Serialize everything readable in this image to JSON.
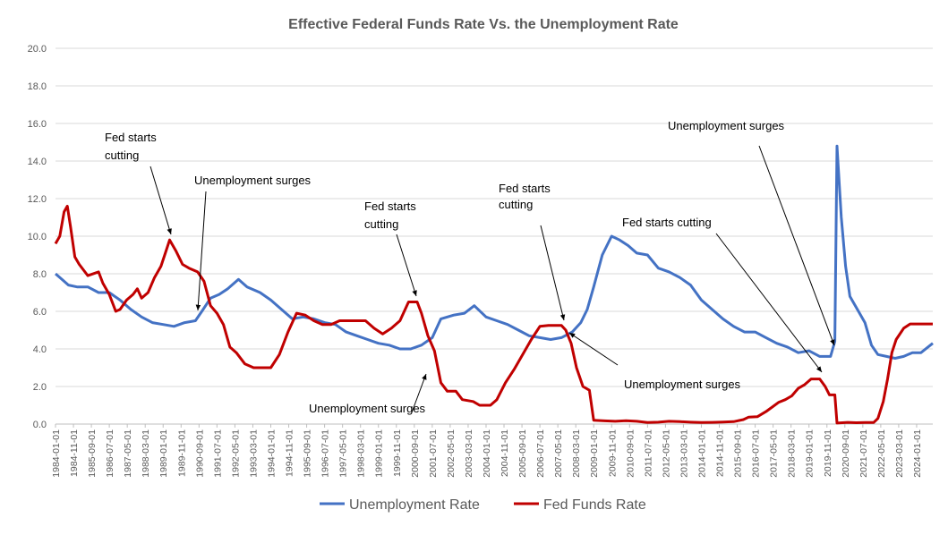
{
  "chart_data": {
    "type": "line",
    "title": "Effective Federal Funds Rate Vs. the Unemployment Rate",
    "xlabel": "",
    "ylabel": "",
    "ylim": [
      0,
      20
    ],
    "yticks": [
      "0.0",
      "2.0",
      "4.0",
      "6.0",
      "8.0",
      "10.0",
      "12.0",
      "14.0",
      "16.0",
      "18.0",
      "20.0"
    ],
    "grid": true,
    "legend_position": "bottom",
    "xticks": [
      "1984-01-01",
      "1984-11-01",
      "1985-09-01",
      "1986-07-01",
      "1987-05-01",
      "1988-03-01",
      "1989-01-01",
      "1989-11-01",
      "1990-09-01",
      "1991-07-01",
      "1992-05-01",
      "1993-03-01",
      "1994-01-01",
      "1994-11-01",
      "1995-09-01",
      "1996-07-01",
      "1997-05-01",
      "1998-03-01",
      "1999-01-01",
      "1999-11-01",
      "2000-09-01",
      "2001-07-01",
      "2002-05-01",
      "2003-03-01",
      "2004-01-01",
      "2004-11-01",
      "2005-09-01",
      "2006-07-01",
      "2007-05-01",
      "2008-03-01",
      "2009-01-01",
      "2009-11-01",
      "2010-09-01",
      "2011-07-01",
      "2012-05-01",
      "2013-03-01",
      "2014-01-01",
      "2014-11-01",
      "2015-09-01",
      "2016-07-01",
      "2017-05-01",
      "2018-03-01",
      "2019-01-01",
      "2019-11-01",
      "2020-09-01",
      "2021-07-01",
      "2022-05-01",
      "2023-03-01",
      "2024-01-01"
    ],
    "x_start": 1984.0,
    "x_end": 2024.75,
    "series": [
      {
        "name": "Unemployment Rate",
        "color": "#4472c4",
        "points": [
          [
            1984.0,
            8.0
          ],
          [
            1984.3,
            7.7
          ],
          [
            1984.6,
            7.4
          ],
          [
            1985.0,
            7.3
          ],
          [
            1985.5,
            7.3
          ],
          [
            1986.0,
            7.0
          ],
          [
            1986.5,
            7.0
          ],
          [
            1987.0,
            6.6
          ],
          [
            1987.5,
            6.1
          ],
          [
            1988.0,
            5.7
          ],
          [
            1988.5,
            5.4
          ],
          [
            1989.0,
            5.3
          ],
          [
            1989.5,
            5.2
          ],
          [
            1990.0,
            5.4
          ],
          [
            1990.5,
            5.5
          ],
          [
            1990.8,
            6.0
          ],
          [
            1991.2,
            6.7
          ],
          [
            1991.6,
            6.9
          ],
          [
            1992.0,
            7.2
          ],
          [
            1992.5,
            7.7
          ],
          [
            1992.9,
            7.3
          ],
          [
            1993.5,
            7.0
          ],
          [
            1994.0,
            6.6
          ],
          [
            1994.5,
            6.1
          ],
          [
            1995.0,
            5.6
          ],
          [
            1995.5,
            5.7
          ],
          [
            1996.0,
            5.6
          ],
          [
            1996.5,
            5.4
          ],
          [
            1997.0,
            5.3
          ],
          [
            1997.5,
            4.9
          ],
          [
            1998.0,
            4.7
          ],
          [
            1998.5,
            4.5
          ],
          [
            1999.0,
            4.3
          ],
          [
            1999.5,
            4.2
          ],
          [
            2000.0,
            4.0
          ],
          [
            2000.5,
            4.0
          ],
          [
            2001.0,
            4.2
          ],
          [
            2001.5,
            4.6
          ],
          [
            2001.9,
            5.6
          ],
          [
            2002.5,
            5.8
          ],
          [
            2003.0,
            5.9
          ],
          [
            2003.45,
            6.3
          ],
          [
            2004.0,
            5.7
          ],
          [
            2004.5,
            5.5
          ],
          [
            2005.0,
            5.3
          ],
          [
            2005.5,
            5.0
          ],
          [
            2006.0,
            4.7
          ],
          [
            2006.5,
            4.6
          ],
          [
            2007.0,
            4.5
          ],
          [
            2007.5,
            4.6
          ],
          [
            2008.0,
            4.9
          ],
          [
            2008.4,
            5.4
          ],
          [
            2008.7,
            6.1
          ],
          [
            2009.0,
            7.3
          ],
          [
            2009.4,
            9.0
          ],
          [
            2009.83,
            10.0
          ],
          [
            2010.2,
            9.8
          ],
          [
            2010.6,
            9.5
          ],
          [
            2011.0,
            9.1
          ],
          [
            2011.5,
            9.0
          ],
          [
            2012.0,
            8.3
          ],
          [
            2012.5,
            8.1
          ],
          [
            2013.0,
            7.8
          ],
          [
            2013.5,
            7.4
          ],
          [
            2014.0,
            6.6
          ],
          [
            2014.5,
            6.1
          ],
          [
            2015.0,
            5.6
          ],
          [
            2015.5,
            5.2
          ],
          [
            2016.0,
            4.9
          ],
          [
            2016.5,
            4.9
          ],
          [
            2017.0,
            4.6
          ],
          [
            2017.5,
            4.3
          ],
          [
            2018.0,
            4.1
          ],
          [
            2018.5,
            3.8
          ],
          [
            2019.0,
            3.9
          ],
          [
            2019.5,
            3.6
          ],
          [
            2020.0,
            3.6
          ],
          [
            2020.2,
            4.4
          ],
          [
            2020.3,
            14.8
          ],
          [
            2020.5,
            11.0
          ],
          [
            2020.7,
            8.4
          ],
          [
            2020.9,
            6.8
          ],
          [
            2021.3,
            6.0
          ],
          [
            2021.6,
            5.4
          ],
          [
            2021.9,
            4.2
          ],
          [
            2022.2,
            3.7
          ],
          [
            2022.6,
            3.6
          ],
          [
            2023.0,
            3.5
          ],
          [
            2023.4,
            3.6
          ],
          [
            2023.8,
            3.8
          ],
          [
            2024.2,
            3.8
          ],
          [
            2024.75,
            4.3
          ]
        ]
      },
      {
        "name": "Fed Funds Rate",
        "color": "#c00000",
        "points": [
          [
            1984.0,
            9.6
          ],
          [
            1984.2,
            10.0
          ],
          [
            1984.4,
            11.3
          ],
          [
            1984.55,
            11.6
          ],
          [
            1984.7,
            10.5
          ],
          [
            1984.9,
            8.9
          ],
          [
            1985.1,
            8.5
          ],
          [
            1985.5,
            7.9
          ],
          [
            1986.0,
            8.1
          ],
          [
            1986.2,
            7.5
          ],
          [
            1986.5,
            6.9
          ],
          [
            1986.8,
            6.0
          ],
          [
            1987.0,
            6.1
          ],
          [
            1987.3,
            6.6
          ],
          [
            1987.6,
            6.9
          ],
          [
            1987.8,
            7.2
          ],
          [
            1988.0,
            6.7
          ],
          [
            1988.3,
            7.0
          ],
          [
            1988.6,
            7.8
          ],
          [
            1988.9,
            8.4
          ],
          [
            1989.1,
            9.1
          ],
          [
            1989.3,
            9.8
          ],
          [
            1989.6,
            9.2
          ],
          [
            1989.9,
            8.5
          ],
          [
            1990.2,
            8.3
          ],
          [
            1990.6,
            8.1
          ],
          [
            1990.9,
            7.6
          ],
          [
            1991.2,
            6.3
          ],
          [
            1991.5,
            5.9
          ],
          [
            1991.8,
            5.3
          ],
          [
            1992.1,
            4.1
          ],
          [
            1992.4,
            3.8
          ],
          [
            1992.8,
            3.2
          ],
          [
            1993.2,
            3.0
          ],
          [
            1993.6,
            3.0
          ],
          [
            1994.0,
            3.0
          ],
          [
            1994.4,
            3.7
          ],
          [
            1994.8,
            4.9
          ],
          [
            1995.2,
            5.9
          ],
          [
            1995.6,
            5.8
          ],
          [
            1996.0,
            5.5
          ],
          [
            1996.4,
            5.3
          ],
          [
            1996.8,
            5.3
          ],
          [
            1997.2,
            5.5
          ],
          [
            1997.6,
            5.5
          ],
          [
            1998.0,
            5.5
          ],
          [
            1998.4,
            5.5
          ],
          [
            1998.8,
            5.1
          ],
          [
            1999.2,
            4.8
          ],
          [
            1999.6,
            5.1
          ],
          [
            2000.0,
            5.5
          ],
          [
            2000.4,
            6.5
          ],
          [
            2000.8,
            6.5
          ],
          [
            2001.0,
            5.9
          ],
          [
            2001.3,
            4.7
          ],
          [
            2001.6,
            3.9
          ],
          [
            2001.9,
            2.2
          ],
          [
            2002.2,
            1.75
          ],
          [
            2002.6,
            1.75
          ],
          [
            2002.9,
            1.3
          ],
          [
            2003.4,
            1.2
          ],
          [
            2003.7,
            1.0
          ],
          [
            2004.2,
            1.0
          ],
          [
            2004.5,
            1.3
          ],
          [
            2004.9,
            2.2
          ],
          [
            2005.3,
            2.9
          ],
          [
            2005.7,
            3.7
          ],
          [
            2006.1,
            4.5
          ],
          [
            2006.5,
            5.2
          ],
          [
            2006.9,
            5.25
          ],
          [
            2007.5,
            5.25
          ],
          [
            2007.7,
            5.0
          ],
          [
            2007.95,
            4.3
          ],
          [
            2008.2,
            3.0
          ],
          [
            2008.5,
            2.0
          ],
          [
            2008.8,
            1.8
          ],
          [
            2009.0,
            0.2
          ],
          [
            2009.5,
            0.17
          ],
          [
            2010.0,
            0.15
          ],
          [
            2010.5,
            0.18
          ],
          [
            2011.0,
            0.15
          ],
          [
            2011.5,
            0.08
          ],
          [
            2012.0,
            0.1
          ],
          [
            2012.5,
            0.15
          ],
          [
            2013.0,
            0.13
          ],
          [
            2013.5,
            0.1
          ],
          [
            2014.0,
            0.08
          ],
          [
            2014.5,
            0.09
          ],
          [
            2015.0,
            0.11
          ],
          [
            2015.5,
            0.13
          ],
          [
            2015.95,
            0.24
          ],
          [
            2016.2,
            0.37
          ],
          [
            2016.6,
            0.39
          ],
          [
            2017.0,
            0.66
          ],
          [
            2017.3,
            0.91
          ],
          [
            2017.6,
            1.16
          ],
          [
            2017.9,
            1.3
          ],
          [
            2018.2,
            1.5
          ],
          [
            2018.5,
            1.9
          ],
          [
            2018.8,
            2.1
          ],
          [
            2019.1,
            2.4
          ],
          [
            2019.5,
            2.4
          ],
          [
            2019.75,
            2.0
          ],
          [
            2019.95,
            1.55
          ],
          [
            2020.2,
            1.55
          ],
          [
            2020.3,
            0.05
          ],
          [
            2020.8,
            0.09
          ],
          [
            2021.2,
            0.07
          ],
          [
            2021.6,
            0.08
          ],
          [
            2022.0,
            0.08
          ],
          [
            2022.2,
            0.3
          ],
          [
            2022.45,
            1.2
          ],
          [
            2022.65,
            2.4
          ],
          [
            2022.85,
            3.8
          ],
          [
            2023.05,
            4.5
          ],
          [
            2023.4,
            5.1
          ],
          [
            2023.7,
            5.33
          ],
          [
            2024.75,
            5.33
          ]
        ]
      }
    ],
    "annotations": [
      {
        "lines": [
          "Fed starts",
          "cutting"
        ]
      },
      {
        "lines": [
          "Unemployment surges"
        ]
      },
      {
        "lines": [
          "Fed starts",
          "cutting"
        ]
      },
      {
        "lines": [
          "Unemployment surges"
        ]
      },
      {
        "lines": [
          "Fed starts",
          "cutting"
        ]
      },
      {
        "lines": [
          "Unemployment surges"
        ]
      },
      {
        "lines": [
          "Fed starts cutting"
        ]
      },
      {
        "lines": [
          "Unemployment surges"
        ]
      }
    ]
  }
}
